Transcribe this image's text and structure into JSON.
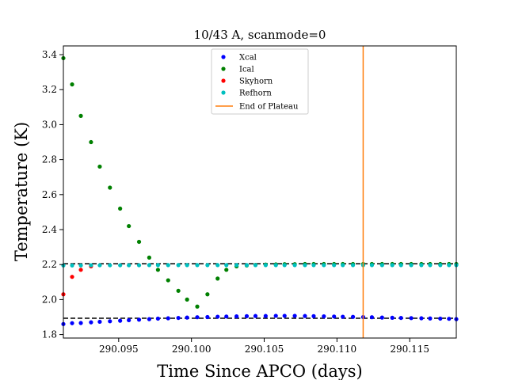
{
  "chart_data": {
    "type": "scatter",
    "title": "10/43 A, scanmode=0",
    "xlabel": "Time Since APCO (days)",
    "ylabel": "Temperature (K)",
    "xlim": [
      290.0912,
      290.1182
    ],
    "ylim": [
      1.78,
      3.45
    ],
    "xticks": [
      290.095,
      290.1,
      290.105,
      290.11,
      290.115
    ],
    "xtick_labels": [
      "290.095",
      "290.100",
      "290.105",
      "290.110",
      "290.115"
    ],
    "yticks": [
      1.8,
      2.0,
      2.2,
      2.4,
      2.6,
      2.8,
      3.0,
      3.2,
      3.4
    ],
    "ytick_labels": [
      "1.8",
      "2.0",
      "2.2",
      "2.4",
      "2.6",
      "2.8",
      "3.0",
      "3.2",
      "3.4"
    ],
    "legend_position": "top-center",
    "series": [
      {
        "name": "Xcal",
        "color": "#0000ff",
        "x": [
          290.0912,
          290.0918,
          290.0924,
          290.0931,
          290.0937,
          290.0944,
          290.0951,
          290.0957,
          290.0964,
          290.0971,
          290.0977,
          290.0984,
          290.0991,
          290.0997,
          290.1004,
          290.1011,
          290.1018,
          290.1024,
          290.1031,
          290.1038,
          290.1044,
          290.1051,
          290.1058,
          290.1064,
          290.1071,
          290.1078,
          290.1084,
          290.1091,
          290.1098,
          290.1104,
          290.1111,
          290.1118,
          290.1124,
          290.1131,
          290.1138,
          290.1144,
          290.1151,
          290.1158,
          290.1164,
          290.1171,
          290.1177,
          290.1182
        ],
        "y": [
          1.86,
          1.865,
          1.866,
          1.87,
          1.873,
          1.876,
          1.879,
          1.882,
          1.885,
          1.888,
          1.891,
          1.893,
          1.895,
          1.897,
          1.899,
          1.9,
          1.902,
          1.903,
          1.904,
          1.905,
          1.906,
          1.906,
          1.907,
          1.907,
          1.907,
          1.906,
          1.905,
          1.904,
          1.903,
          1.902,
          1.901,
          1.9,
          1.899,
          1.897,
          1.896,
          1.895,
          1.894,
          1.893,
          1.892,
          1.891,
          1.89,
          1.888
        ]
      },
      {
        "name": "Ical",
        "color": "#008000",
        "x": [
          290.0912,
          290.0918,
          290.0924,
          290.0931,
          290.0937,
          290.0944,
          290.0951,
          290.0957,
          290.0964,
          290.0971,
          290.0977,
          290.0984,
          290.0991,
          290.0997,
          290.1004,
          290.1011,
          290.1018,
          290.1024,
          290.1031,
          290.1038,
          290.1044,
          290.1051,
          290.1058,
          290.1064,
          290.1071,
          290.1078,
          290.1084,
          290.1091,
          290.1098,
          290.1104,
          290.1111,
          290.1118,
          290.1124,
          290.1131,
          290.1138,
          290.1144,
          290.1151,
          290.1158,
          290.1164,
          290.1171,
          290.1177,
          290.1182
        ],
        "y": [
          3.38,
          3.23,
          3.05,
          2.9,
          2.76,
          2.64,
          2.52,
          2.42,
          2.33,
          2.24,
          2.17,
          2.11,
          2.05,
          2.0,
          1.96,
          2.03,
          2.12,
          2.17,
          2.19,
          2.195,
          2.198,
          2.2,
          2.201,
          2.202,
          2.202,
          2.203,
          2.203,
          2.203,
          2.203,
          2.203,
          2.203,
          2.203,
          2.203,
          2.203,
          2.203,
          2.203,
          2.203,
          2.203,
          2.203,
          2.203,
          2.203,
          2.203
        ]
      },
      {
        "name": "Skyhorn",
        "color": "#ff0000",
        "x": [
          290.0912,
          290.0918,
          290.0924,
          290.0931
        ],
        "y": [
          2.03,
          2.13,
          2.17,
          2.19
        ]
      },
      {
        "name": "Refhorn",
        "color": "#00bfbf",
        "x": [
          290.0912,
          290.0918,
          290.0924,
          290.0931,
          290.0937,
          290.0944,
          290.0951,
          290.0957,
          290.0964,
          290.0971,
          290.0977,
          290.0984,
          290.0991,
          290.0997,
          290.1004,
          290.1011,
          290.1018,
          290.1024,
          290.1031,
          290.1038,
          290.1044,
          290.1051,
          290.1058,
          290.1064,
          290.1071,
          290.1078,
          290.1084,
          290.1091,
          290.1098,
          290.1104,
          290.1111,
          290.1118,
          290.1124,
          290.1131,
          290.1138,
          290.1144,
          290.1151,
          290.1158,
          290.1164,
          290.1171,
          290.1177,
          290.1182
        ],
        "y": [
          2.195,
          2.195,
          2.195,
          2.196,
          2.196,
          2.196,
          2.196,
          2.196,
          2.196,
          2.197,
          2.197,
          2.197,
          2.197,
          2.197,
          2.197,
          2.197,
          2.197,
          2.197,
          2.197,
          2.197,
          2.197,
          2.197,
          2.197,
          2.197,
          2.197,
          2.197,
          2.197,
          2.197,
          2.197,
          2.197,
          2.197,
          2.197,
          2.197,
          2.197,
          2.197,
          2.197,
          2.197,
          2.197,
          2.197,
          2.197,
          2.197,
          2.197
        ]
      }
    ],
    "reference_lines": [
      {
        "axis": "y",
        "value": 2.205,
        "style": "dashed",
        "color": "#000000"
      },
      {
        "axis": "y",
        "value": 1.893,
        "style": "dashed",
        "color": "#000000"
      }
    ],
    "vertical_line": {
      "name": "End of Plateau",
      "value": 290.1118,
      "color": "#ff7f0e"
    }
  }
}
